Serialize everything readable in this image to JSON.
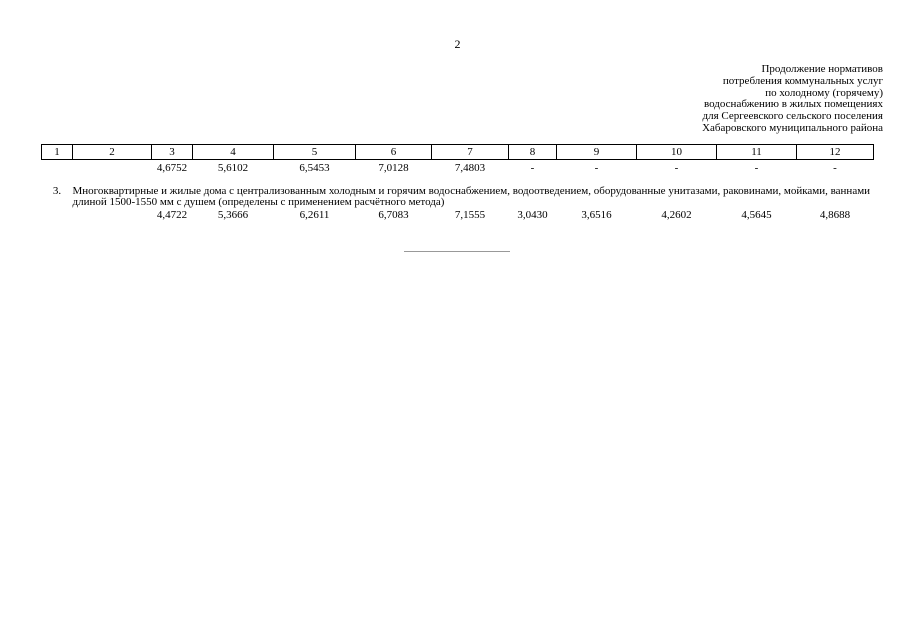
{
  "page_number": "2",
  "caption": {
    "lines": [
      "Продолжение нормативов",
      "потребления коммунальных услуг",
      "по холодному (горячему)",
      "водоснабжению в жилых помещениях",
      "для Сергеевского сельского поселения",
      "Хабаровского муниципального района"
    ]
  },
  "table": {
    "headers": [
      "1",
      "2",
      "3",
      "4",
      "5",
      "6",
      "7",
      "8",
      "9",
      "10",
      "11",
      "12"
    ],
    "row1": [
      "4,6752",
      "5,6102",
      "6,5453",
      "7,0128",
      "7,4803",
      "-",
      "-",
      "-",
      "-",
      "-"
    ],
    "section3": {
      "number": "3.",
      "description": "Многоквартирные и жилые дома с централизованным холодным и горячим водоснабжением, водоотведением, оборудованные унитазами, раковинами, мойками, ваннами длиной 1500-1550 мм с душем (определены с применением расчётного метода)"
    },
    "row2": [
      "4,4722",
      "5,3666",
      "6,2611",
      "6,7083",
      "7,1555",
      "3,0430",
      "3,6516",
      "4,2602",
      "4,5645",
      "4,8688"
    ]
  }
}
